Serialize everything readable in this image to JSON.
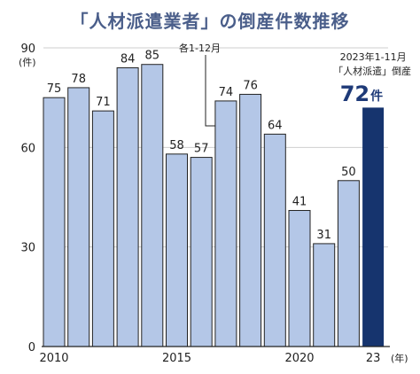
{
  "title": "「人材派遣業者」の倒産件数推移",
  "chart_data": {
    "type": "bar",
    "categories": [
      "2010",
      "2011",
      "2012",
      "2013",
      "2014",
      "2015",
      "2016",
      "2017",
      "2018",
      "2019",
      "2020",
      "2021",
      "2022",
      "2023"
    ],
    "values": [
      75,
      78,
      71,
      84,
      85,
      58,
      57,
      74,
      76,
      64,
      41,
      31,
      50,
      72
    ],
    "x_tick_labels": [
      {
        "index": 0,
        "label": "2010"
      },
      {
        "index": 5,
        "label": "2015"
      },
      {
        "index": 10,
        "label": "2020"
      },
      {
        "index": 13,
        "label": "23"
      }
    ],
    "x_unit": "(年)",
    "y_ticks": [
      0,
      30,
      60,
      90
    ],
    "y_unit": "(件)",
    "ylim": [
      0,
      90
    ],
    "bar_color": "#b4c7e7",
    "highlight_color": "#16346e",
    "bar_note": "各1-12月",
    "highlight": {
      "index": 13,
      "line1": "2023年1-11月",
      "line2": "「人材派遣」倒産",
      "value": "72",
      "unit": "件"
    }
  }
}
